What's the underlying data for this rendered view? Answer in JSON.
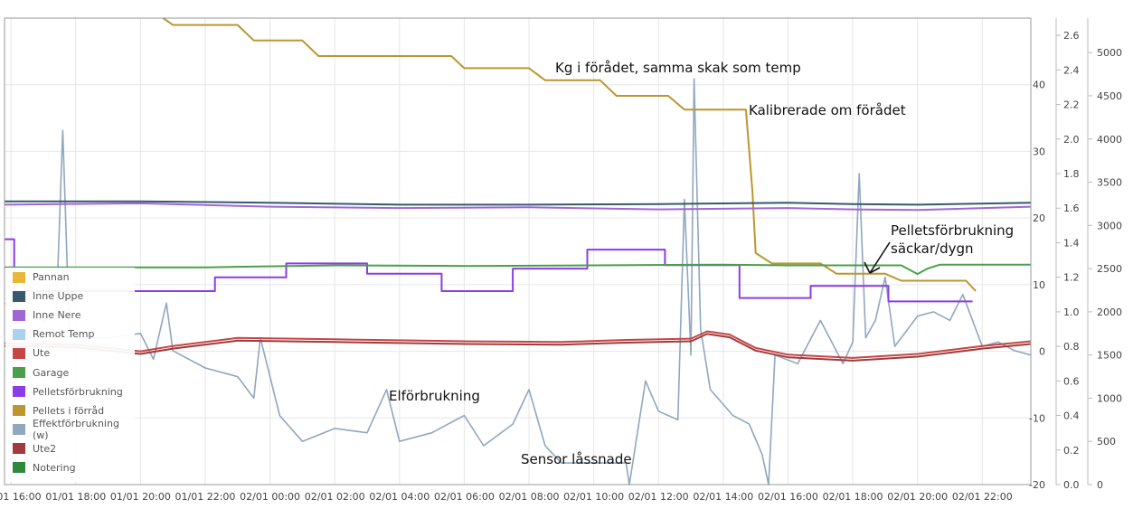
{
  "chart_data": {
    "type": "line",
    "x_ticks": [
      "01/01 16:00",
      "01/01 18:00",
      "01/01 20:00",
      "01/01 22:00",
      "02/01 00:00",
      "02/01 02:00",
      "02/01 04:00",
      "02/01 06:00",
      "02/01 08:00",
      "02/01 10:00",
      "02/01 12:00",
      "02/01 14:00",
      "02/01 16:00",
      "02/01 18:00",
      "02/01 20:00",
      "02/01 22:00"
    ],
    "x_range_hours": [
      -0.2,
      31.5
    ],
    "axes": {
      "temp": {
        "range": [
          -20,
          50
        ],
        "ticks": [
          -20,
          -10,
          0,
          10,
          20,
          30,
          40
        ],
        "tick_labels": [
          "-20",
          "-10",
          "0",
          "10",
          "20",
          "30",
          "40"
        ]
      },
      "pellets": {
        "range": [
          0,
          2.7
        ],
        "ticks": [
          0,
          0.2,
          0.4,
          0.6,
          0.8,
          1.0,
          1.2,
          1.4,
          1.6,
          1.8,
          2.0,
          2.2,
          2.4,
          2.6
        ],
        "tick_labels": [
          "0.0",
          "0.2",
          "0.4",
          "0.6",
          "0.8",
          "1.0",
          "1.2",
          "1.4",
          "1.6",
          "1.8",
          "2.0",
          "2.2",
          "2.4",
          "2.6"
        ]
      },
      "power": {
        "range": [
          0,
          5400
        ],
        "ticks": [
          0,
          500,
          1000,
          1500,
          2000,
          2500,
          3000,
          3500,
          4000,
          4500,
          5000
        ],
        "tick_labels": [
          "0",
          "500",
          "1000",
          "1500",
          "2000",
          "2500",
          "3000",
          "3500",
          "4000",
          "4500",
          "5000"
        ]
      }
    },
    "legend": [
      {
        "name": "Pannan",
        "color": "#e8b735"
      },
      {
        "name": "Inne Uppe",
        "color": "#35596f"
      },
      {
        "name": "Inne Nere",
        "color": "#a066d8"
      },
      {
        "name": "Remot Temp",
        "color": "#a9d2f0"
      },
      {
        "name": "Ute",
        "color": "#c64545"
      },
      {
        "name": "Garage",
        "color": "#4aa04a"
      },
      {
        "name": "Pelletsförbrukning",
        "color": "#8a3de6"
      },
      {
        "name": "Pellets i förråd",
        "color": "#bd962f"
      },
      {
        "name": "Effektförbrukning (w)",
        "color": "#8fa7bf"
      },
      {
        "name": "Ute2",
        "color": "#a13a3a"
      },
      {
        "name": "Notering",
        "color": "#2e8a3b"
      }
    ],
    "series": [
      {
        "name": "Inne Uppe",
        "axis": "temp",
        "points": [
          [
            -0.2,
            22.5
          ],
          [
            4,
            22.5
          ],
          [
            8,
            22.3
          ],
          [
            12,
            22.0
          ],
          [
            16,
            22.0
          ],
          [
            20,
            22.1
          ],
          [
            24,
            22.3
          ],
          [
            26,
            22.1
          ],
          [
            28,
            22.0
          ],
          [
            31.5,
            22.3
          ]
        ]
      },
      {
        "name": "Inne Nere",
        "axis": "temp",
        "points": [
          [
            -0.2,
            22.0
          ],
          [
            4,
            22.2
          ],
          [
            8,
            21.7
          ],
          [
            12,
            21.5
          ],
          [
            16,
            21.6
          ],
          [
            20,
            21.3
          ],
          [
            24,
            21.5
          ],
          [
            26,
            21.3
          ],
          [
            28,
            21.2
          ],
          [
            31.5,
            21.7
          ]
        ]
      },
      {
        "name": "Garage",
        "axis": "temp",
        "points": [
          [
            -0.2,
            12.6
          ],
          [
            6,
            12.6
          ],
          [
            10,
            12.9
          ],
          [
            14,
            12.8
          ],
          [
            18,
            12.9
          ],
          [
            22,
            13.0
          ],
          [
            24,
            12.9
          ],
          [
            27.5,
            12.9
          ],
          [
            28,
            11.6
          ],
          [
            28.3,
            12.4
          ],
          [
            28.7,
            13.0
          ],
          [
            31.5,
            13.0
          ]
        ]
      },
      {
        "name": "Ute",
        "axis": "temp",
        "points": [
          [
            -0.2,
            1.2
          ],
          [
            2,
            1.0
          ],
          [
            4,
            0.0
          ],
          [
            5,
            0.8
          ],
          [
            7,
            2.0
          ],
          [
            10,
            1.8
          ],
          [
            14,
            1.5
          ],
          [
            17,
            1.4
          ],
          [
            19,
            1.7
          ],
          [
            21,
            1.9
          ],
          [
            21.5,
            3.0
          ],
          [
            22.2,
            2.5
          ],
          [
            23,
            0.5
          ],
          [
            24,
            -0.5
          ],
          [
            26,
            -1.0
          ],
          [
            28,
            -0.4
          ],
          [
            30,
            0.8
          ],
          [
            31.5,
            1.5
          ]
        ]
      },
      {
        "name": "Ute2",
        "axis": "temp",
        "points": [
          [
            -0.2,
            0.8
          ],
          [
            2,
            0.6
          ],
          [
            4,
            -0.4
          ],
          [
            5,
            0.4
          ],
          [
            7,
            1.6
          ],
          [
            10,
            1.4
          ],
          [
            14,
            1.1
          ],
          [
            17,
            1.0
          ],
          [
            19,
            1.3
          ],
          [
            21,
            1.5
          ],
          [
            21.5,
            2.6
          ],
          [
            22.2,
            2.1
          ],
          [
            23,
            0.1
          ],
          [
            24,
            -0.9
          ],
          [
            26,
            -1.4
          ],
          [
            28,
            -0.8
          ],
          [
            30,
            0.4
          ],
          [
            31.5,
            1.1
          ]
        ]
      },
      {
        "name": "Pelletsförbrukning",
        "axis": "pellets",
        "points": [
          [
            -0.2,
            1.42
          ],
          [
            0.1,
            1.42
          ],
          [
            0.1,
            1.12
          ],
          [
            6.3,
            1.12
          ],
          [
            6.3,
            1.2
          ],
          [
            8.5,
            1.2
          ],
          [
            8.5,
            1.28
          ],
          [
            11,
            1.28
          ],
          [
            11,
            1.22
          ],
          [
            13.3,
            1.22
          ],
          [
            13.3,
            1.12
          ],
          [
            15.5,
            1.12
          ],
          [
            15.5,
            1.25
          ],
          [
            17.8,
            1.25
          ],
          [
            17.8,
            1.36
          ],
          [
            20.2,
            1.36
          ],
          [
            20.2,
            1.27
          ],
          [
            22.5,
            1.27
          ],
          [
            22.5,
            1.08
          ],
          [
            24.7,
            1.08
          ],
          [
            24.7,
            1.15
          ],
          [
            27.1,
            1.15
          ],
          [
            27.1,
            1.06
          ],
          [
            29.7,
            1.06
          ]
        ]
      },
      {
        "name": "Pellets i förråd",
        "axis": "pellets",
        "points": [
          [
            4.7,
            2.7
          ],
          [
            5,
            2.66
          ],
          [
            7,
            2.66
          ],
          [
            7.5,
            2.57
          ],
          [
            9,
            2.57
          ],
          [
            9.5,
            2.48
          ],
          [
            13.6,
            2.48
          ],
          [
            14,
            2.41
          ],
          [
            16,
            2.41
          ],
          [
            16.5,
            2.34
          ],
          [
            18.2,
            2.34
          ],
          [
            18.7,
            2.25
          ],
          [
            20.3,
            2.25
          ],
          [
            20.8,
            2.17
          ],
          [
            22.7,
            2.17
          ],
          [
            22.9,
            1.7
          ],
          [
            23,
            1.34
          ],
          [
            23.5,
            1.28
          ],
          [
            25,
            1.28
          ],
          [
            25.5,
            1.22
          ],
          [
            27,
            1.22
          ],
          [
            27.5,
            1.18
          ],
          [
            29.5,
            1.18
          ],
          [
            29.8,
            1.12
          ]
        ]
      },
      {
        "name": "Effektförbrukning (w)",
        "axis": "power",
        "points": [
          [
            -0.2,
            2100
          ],
          [
            1,
            1900
          ],
          [
            1.4,
            2000
          ],
          [
            1.6,
            4100
          ],
          [
            1.8,
            1800
          ],
          [
            2,
            1700
          ],
          [
            3,
            1700
          ],
          [
            4,
            1750
          ],
          [
            4.4,
            1450
          ],
          [
            4.8,
            2100
          ],
          [
            5,
            1550
          ],
          [
            6,
            1350
          ],
          [
            7,
            1250
          ],
          [
            7.5,
            1000
          ],
          [
            7.7,
            1700
          ],
          [
            8.3,
            800
          ],
          [
            9,
            500
          ],
          [
            10,
            650
          ],
          [
            11,
            600
          ],
          [
            11.6,
            1100
          ],
          [
            12,
            500
          ],
          [
            13,
            600
          ],
          [
            13.5,
            700
          ],
          [
            14,
            800
          ],
          [
            14.6,
            450
          ],
          [
            15.5,
            700
          ],
          [
            16,
            1100
          ],
          [
            16.5,
            450
          ],
          [
            17,
            250
          ],
          [
            18,
            250
          ],
          [
            19,
            250
          ],
          [
            19.1,
            0
          ],
          [
            19.6,
            1200
          ],
          [
            20,
            850
          ],
          [
            20.6,
            750
          ],
          [
            20.8,
            3300
          ],
          [
            21,
            1500
          ],
          [
            21.1,
            4700
          ],
          [
            21.3,
            1800
          ],
          [
            21.6,
            1100
          ],
          [
            22.3,
            800
          ],
          [
            22.8,
            700
          ],
          [
            23.2,
            350
          ],
          [
            23.4,
            0
          ],
          [
            23.6,
            1500
          ],
          [
            24.3,
            1400
          ],
          [
            25,
            1900
          ],
          [
            25.7,
            1400
          ],
          [
            26,
            1650
          ],
          [
            26.2,
            3600
          ],
          [
            26.4,
            1700
          ],
          [
            26.7,
            1900
          ],
          [
            27,
            2400
          ],
          [
            27.3,
            1600
          ],
          [
            28,
            1950
          ],
          [
            28.5,
            2000
          ],
          [
            29,
            1900
          ],
          [
            29.4,
            2200
          ],
          [
            30,
            1600
          ],
          [
            30.5,
            1650
          ],
          [
            31,
            1550
          ],
          [
            31.5,
            1500
          ]
        ]
      }
    ],
    "annotations": [
      "Kg i förådet, samma skak som temp",
      "Kalibrerade om förådet",
      "Pelletsförbrukning",
      "säckar/dygn",
      "Elförbrukning",
      "Sensor låssnade"
    ]
  }
}
